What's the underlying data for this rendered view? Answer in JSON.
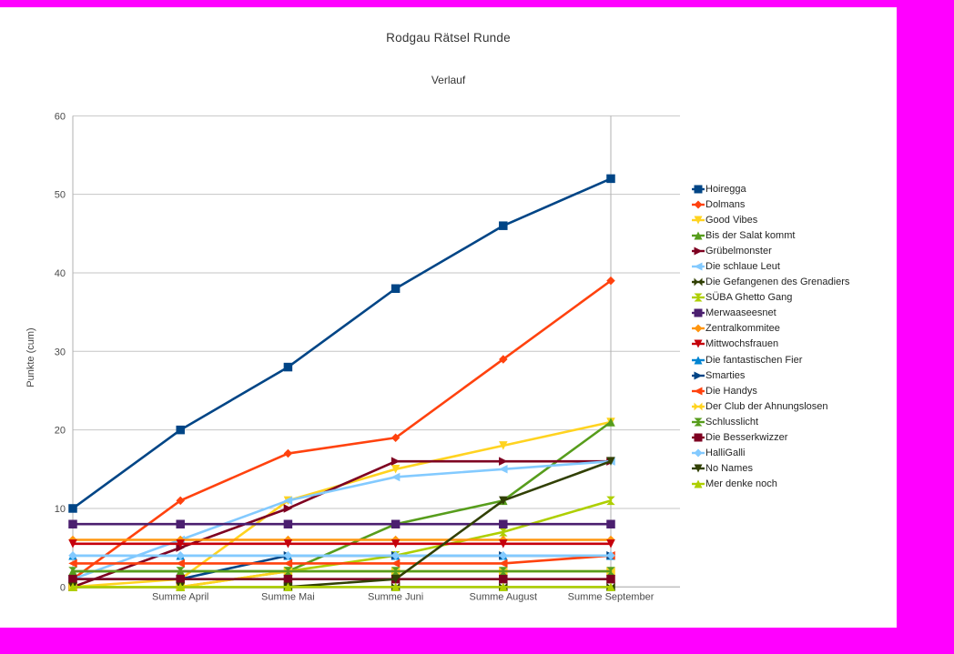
{
  "page": {
    "border_color": "#ff00ff",
    "canvas_color": "#ffffff"
  },
  "chart": {
    "title": "Rodgau Rätsel Runde",
    "subtitle": "Verlauf",
    "y_axis_title": "Punkte (cum)"
  },
  "chart_data": {
    "type": "line",
    "title": "Rodgau Rätsel Runde",
    "subtitle": "Verlauf",
    "xlabel": "",
    "ylabel": "Punkte (cum)",
    "categories": [
      "",
      "Summe April",
      "Summe Mai",
      "Summe Juni",
      "Summe August",
      "Summe September"
    ],
    "visible_category_labels": [
      "Summe April",
      "Summe Mai",
      "Summe Juni",
      "Summe August",
      "Summe September"
    ],
    "ylim": [
      0,
      60
    ],
    "y_ticks": [
      0,
      10,
      20,
      30,
      40,
      50,
      60
    ],
    "grid": true,
    "legend_position": "right",
    "marker_cycle": [
      "square",
      "diamond",
      "tri-down",
      "tri-up",
      "tri-right",
      "tri-left",
      "bowtie",
      "hourglass"
    ],
    "series": [
      {
        "name": "Hoiregga",
        "color": "#004586",
        "marker": "square",
        "values": [
          10,
          20,
          28,
          38,
          46,
          52
        ]
      },
      {
        "name": "Dolmans",
        "color": "#FF420E",
        "marker": "diamond",
        "values": [
          1,
          11,
          17,
          19,
          29,
          39
        ]
      },
      {
        "name": "Good Vibes",
        "color": "#FFD320",
        "marker": "tri-down",
        "values": [
          0,
          1,
          11,
          15,
          18,
          21
        ]
      },
      {
        "name": "Bis der Salat kommt",
        "color": "#579D1C",
        "marker": "tri-up",
        "values": [
          2,
          2,
          2,
          8,
          11,
          21
        ]
      },
      {
        "name": "Grübelmonster",
        "color": "#7E0021",
        "marker": "tri-right",
        "values": [
          0,
          5,
          10,
          16,
          16,
          16
        ]
      },
      {
        "name": "Die schlaue Leut",
        "color": "#83CAFF",
        "marker": "tri-left",
        "values": [
          1,
          6,
          11,
          14,
          15,
          16
        ]
      },
      {
        "name": "Die Gefangenen des Grenadiers",
        "color": "#314004",
        "marker": "bowtie",
        "values": [
          0,
          0,
          0,
          0,
          0,
          0
        ]
      },
      {
        "name": "SÜBA Ghetto Gang",
        "color": "#AECF00",
        "marker": "hourglass",
        "values": [
          0,
          0,
          2,
          4,
          7,
          11
        ]
      },
      {
        "name": "Merwaaseesnet",
        "color": "#4B1F6F",
        "marker": "square",
        "values": [
          8,
          8,
          8,
          8,
          8,
          8
        ]
      },
      {
        "name": "Zentralkommitee",
        "color": "#FF950E",
        "marker": "diamond",
        "values": [
          6,
          6,
          6,
          6,
          6,
          6
        ]
      },
      {
        "name": "Mittwochsfrauen",
        "color": "#C5000B",
        "marker": "tri-down",
        "values": [
          5.5,
          5.5,
          5.5,
          5.5,
          5.5,
          5.5
        ]
      },
      {
        "name": "Die fantastischen Fier",
        "color": "#0084D1",
        "marker": "tri-up",
        "values": [
          4,
          4,
          4,
          4,
          4,
          4
        ]
      },
      {
        "name": "Smarties",
        "color": "#004586",
        "marker": "tri-right",
        "values": [
          1,
          1,
          4,
          4,
          4,
          4
        ]
      },
      {
        "name": "Die Handys",
        "color": "#FF420E",
        "marker": "tri-left",
        "values": [
          3,
          3,
          3,
          3,
          3,
          4
        ]
      },
      {
        "name": "Der Club der Ahnungslosen",
        "color": "#FFD320",
        "marker": "bowtie",
        "values": [
          0,
          0,
          2,
          2,
          2,
          2
        ]
      },
      {
        "name": "Schlusslicht",
        "color": "#579D1C",
        "marker": "hourglass",
        "values": [
          2,
          2,
          2,
          2,
          2,
          2
        ]
      },
      {
        "name": "Die Besserkwizzer",
        "color": "#7E0021",
        "marker": "square",
        "values": [
          1,
          1,
          1,
          1,
          1,
          1
        ]
      },
      {
        "name": "HalliGalli",
        "color": "#83CAFF",
        "marker": "diamond",
        "values": [
          4,
          4,
          4,
          4,
          4,
          4
        ]
      },
      {
        "name": "No Names",
        "color": "#314004",
        "marker": "tri-down",
        "values": [
          0,
          0,
          0,
          1,
          11,
          16
        ]
      },
      {
        "name": "Mer denke noch",
        "color": "#AECF00",
        "marker": "tri-up",
        "values": [
          0,
          0,
          0,
          0,
          0,
          0
        ]
      }
    ]
  }
}
